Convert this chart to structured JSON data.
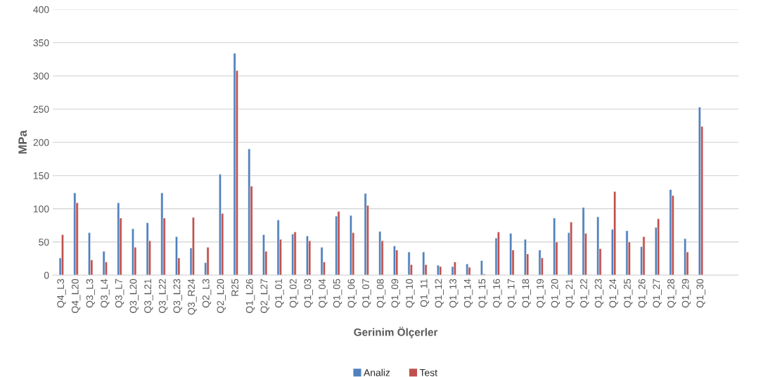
{
  "chart_data": {
    "type": "bar",
    "xlabel": "Gerinim Ölçerler",
    "ylabel": "MPa",
    "categories": [
      "Q4_L3",
      "Q4_L20",
      "Q3_L3",
      "Q3_L4",
      "Q3_L7",
      "Q3_L20",
      "Q3_L21",
      "Q3_L22",
      "Q3_L23",
      "Q3_R24",
      "Q2_L3",
      "Q2_L20",
      "R25",
      "Q1_L26",
      "Q2_L27",
      "Q1_01",
      "Q1_02",
      "Q1_03",
      "Q1_04",
      "Q1_05",
      "Q1_06",
      "Q1_07",
      "Q1_08",
      "Q1_09",
      "Q1_10",
      "Q1_11",
      "Q1_12",
      "Q1_13",
      "Q1_14",
      "Q1_15",
      "Q1_16",
      "Q1_17",
      "Q1_18",
      "Q1_19",
      "Q1_20",
      "Q1_21",
      "Q1_22",
      "Q1_23",
      "Q1_24",
      "Q1_25",
      "Q1_26",
      "Q1_27",
      "Q1_28",
      "Q1_29",
      "Q1_30",
      null,
      null
    ],
    "series": [
      {
        "name": "Analiz",
        "color": "#4f81bd",
        "values": [
          26,
          124,
          64,
          36,
          109,
          70,
          79,
          124,
          58,
          41,
          19,
          152,
          334,
          190,
          61,
          83,
          62,
          59,
          42,
          89,
          90,
          123,
          66,
          44,
          35,
          35,
          15,
          13,
          17,
          22,
          56,
          63,
          54,
          38,
          86,
          64,
          102,
          88,
          69,
          67,
          43,
          72,
          129,
          55,
          253,
          null,
          null
        ]
      },
      {
        "name": "Test",
        "color": "#c0504d",
        "values": [
          61,
          109,
          23,
          20,
          86,
          42,
          52,
          86,
          26,
          87,
          42,
          93,
          308,
          134,
          36,
          54,
          65,
          52,
          20,
          96,
          64,
          105,
          52,
          38,
          16,
          16,
          13,
          20,
          12,
          2,
          65,
          38,
          32,
          26,
          50,
          80,
          63,
          40,
          126,
          50,
          58,
          85,
          120,
          35,
          224,
          null,
          null
        ]
      }
    ],
    "ylim": [
      0,
      400
    ],
    "yticks": [
      0,
      50,
      100,
      150,
      200,
      250,
      300,
      350,
      400
    ],
    "grid": "y",
    "legend": "bottom"
  }
}
